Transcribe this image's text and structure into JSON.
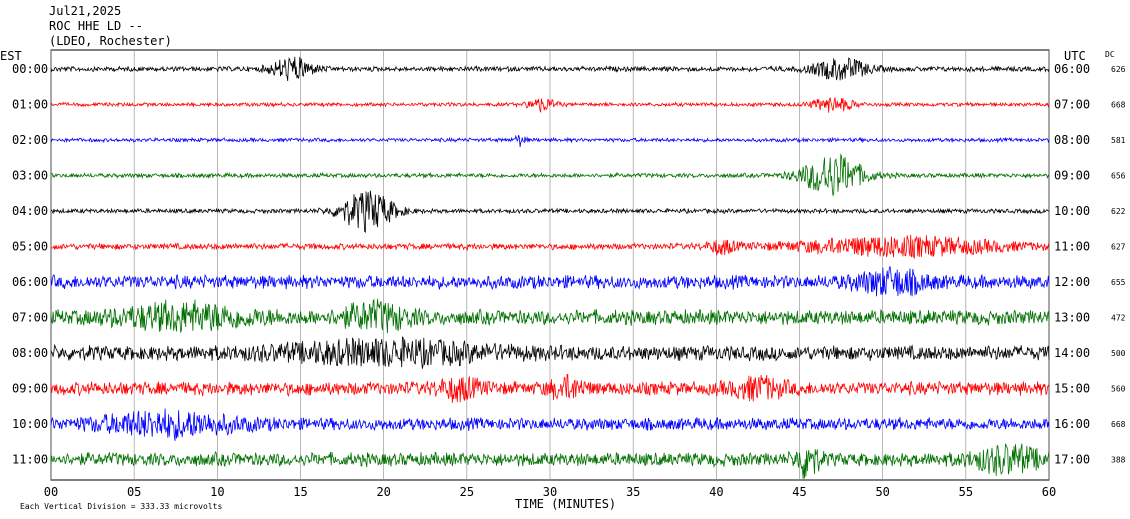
{
  "header": {
    "date": "Jul21,2025",
    "station": "ROC HHE LD --",
    "network": "(LDEO, Rochester)"
  },
  "chart_data": {
    "type": "line",
    "title": "",
    "xlabel": "TIME (MINUTES)",
    "left_axis_label": "EST",
    "right_axis_label": "UTC",
    "dc_label": "DC",
    "xlim": [
      0,
      60
    ],
    "x_ticks": [
      "00",
      "05",
      "10",
      "15",
      "20",
      "25",
      "30",
      "35",
      "40",
      "45",
      "50",
      "55",
      "60"
    ],
    "grid": "vertical",
    "footer_note": "Each Vertical Division =  333.33 microvolts",
    "trace_colors": [
      "#000000",
      "#ff0000",
      "#0000ff",
      "#007000"
    ],
    "traces": [
      {
        "est": "00:00",
        "utc": "06:00",
        "dc": "626",
        "color": "#000000",
        "noise": 0.4,
        "events": [
          {
            "t": 14.5,
            "amp": 1.6,
            "dur": 1.2
          },
          {
            "t": 47.5,
            "amp": 1.5,
            "dur": 1.6
          }
        ]
      },
      {
        "est": "01:00",
        "utc": "07:00",
        "dc": "668",
        "color": "#ff0000",
        "noise": 0.3,
        "events": [
          {
            "t": 29.5,
            "amp": 0.9,
            "dur": 0.8
          },
          {
            "t": 47.0,
            "amp": 1.0,
            "dur": 1.2
          }
        ]
      },
      {
        "est": "02:00",
        "utc": "08:00",
        "dc": "581",
        "color": "#0000ff",
        "noise": 0.3,
        "events": [
          {
            "t": 28.2,
            "amp": 0.8,
            "dur": 0.3
          }
        ]
      },
      {
        "est": "03:00",
        "utc": "09:00",
        "dc": "656",
        "color": "#007000",
        "noise": 0.35,
        "events": [
          {
            "t": 47.0,
            "amp": 3.0,
            "dur": 1.8
          }
        ]
      },
      {
        "est": "04:00",
        "utc": "10:00",
        "dc": "622",
        "color": "#000000",
        "noise": 0.35,
        "events": [
          {
            "t": 19.0,
            "amp": 2.8,
            "dur": 1.6
          }
        ]
      },
      {
        "est": "05:00",
        "utc": "11:00",
        "dc": "627",
        "color": "#ff0000",
        "noise": 0.5,
        "events": [
          {
            "t": 40.3,
            "amp": 0.9,
            "dur": 0.8
          },
          {
            "t": 51.0,
            "amp": 1.3,
            "dur": 6.0
          }
        ]
      },
      {
        "est": "06:00",
        "utc": "12:00",
        "dc": "655",
        "color": "#0000ff",
        "noise": 1.1,
        "events": [
          {
            "t": 50.5,
            "amp": 1.5,
            "dur": 2.0
          }
        ]
      },
      {
        "est": "07:00",
        "utc": "13:00",
        "dc": "472",
        "color": "#007000",
        "noise": 1.2,
        "events": [
          {
            "t": 8.0,
            "amp": 1.5,
            "dur": 4.0
          },
          {
            "t": 19.5,
            "amp": 1.6,
            "dur": 2.0
          }
        ]
      },
      {
        "est": "08:00",
        "utc": "14:00",
        "dc": "500",
        "color": "#000000",
        "noise": 1.2,
        "events": [
          {
            "t": 20.0,
            "amp": 1.3,
            "dur": 6.0
          }
        ]
      },
      {
        "est": "09:00",
        "utc": "15:00",
        "dc": "560",
        "color": "#ff0000",
        "noise": 1.1,
        "events": [
          {
            "t": 24.5,
            "amp": 1.2,
            "dur": 1.2
          },
          {
            "t": 31.0,
            "amp": 1.2,
            "dur": 1.0
          },
          {
            "t": 42.5,
            "amp": 1.2,
            "dur": 1.5
          }
        ]
      },
      {
        "est": "10:00",
        "utc": "16:00",
        "dc": "668",
        "color": "#0000ff",
        "noise": 1.0,
        "events": [
          {
            "t": 7.0,
            "amp": 1.5,
            "dur": 4.0
          }
        ]
      },
      {
        "est": "11:00",
        "utc": "17:00",
        "dc": "388",
        "color": "#007000",
        "noise": 1.1,
        "events": [
          {
            "t": 45.5,
            "amp": 2.5,
            "dur": 0.6
          },
          {
            "t": 57.5,
            "amp": 1.6,
            "dur": 2.0
          }
        ]
      }
    ]
  }
}
